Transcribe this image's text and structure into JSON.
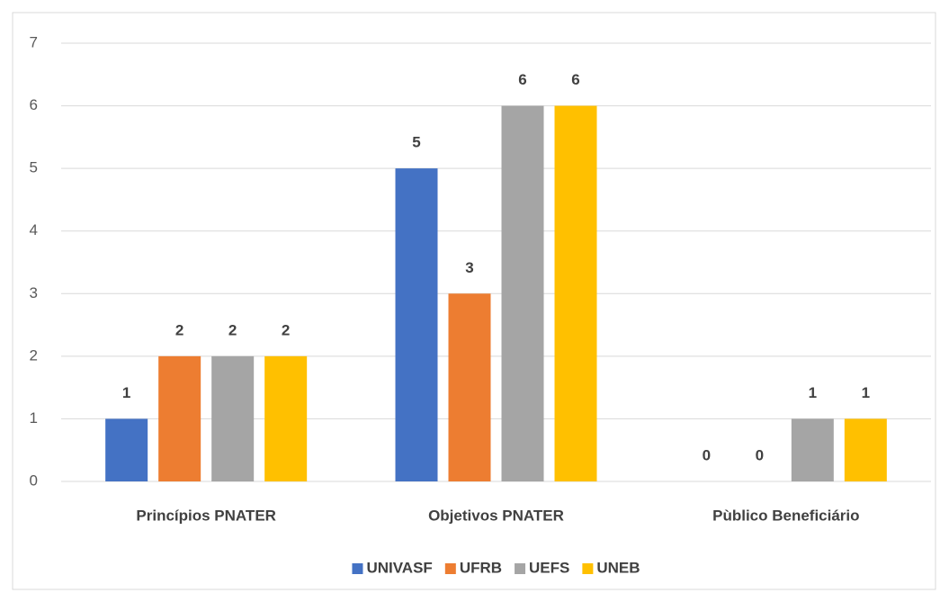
{
  "chart_data": {
    "type": "bar",
    "categories": [
      "Princípios PNATER",
      "Objetivos PNATER",
      "Pùblico Beneficiário"
    ],
    "series": [
      {
        "name": "UNIVASF",
        "color": "#4472c4",
        "values": [
          1,
          5,
          0
        ]
      },
      {
        "name": "UFRB",
        "color": "#ed7d31",
        "values": [
          2,
          3,
          0
        ]
      },
      {
        "name": "UEFS",
        "color": "#a5a5a5",
        "values": [
          2,
          6,
          1
        ]
      },
      {
        "name": "UNEB",
        "color": "#ffc000",
        "values": [
          2,
          6,
          1
        ]
      }
    ],
    "ylim": [
      0,
      7
    ],
    "yticks": [
      0,
      1,
      2,
      3,
      4,
      5,
      6,
      7
    ],
    "grid": true,
    "legend": "bottom"
  }
}
